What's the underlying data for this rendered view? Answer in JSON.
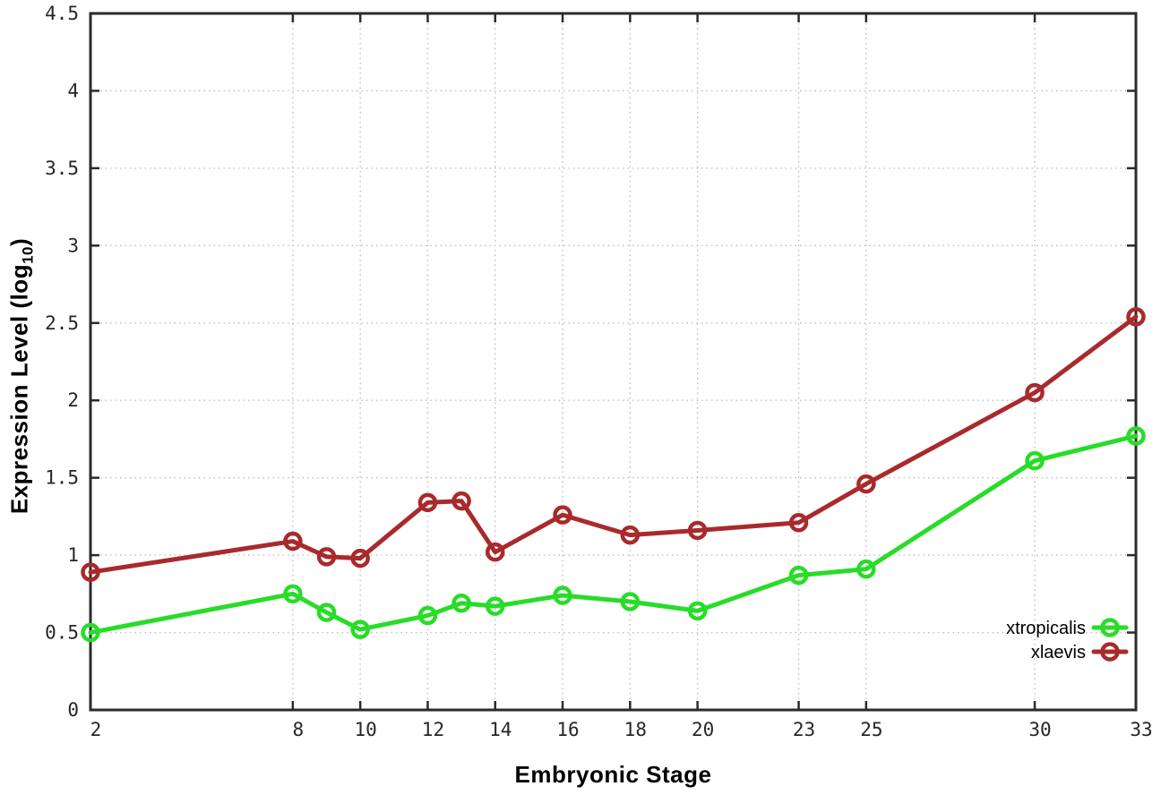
{
  "chart_data": {
    "type": "line",
    "x": [
      2,
      8,
      9,
      10,
      12,
      13,
      14,
      16,
      18,
      20,
      23,
      25,
      30,
      33
    ],
    "series": [
      {
        "name": "xtropicalis",
        "color": "#28dc28",
        "values": [
          0.5,
          0.75,
          0.63,
          0.52,
          0.61,
          0.69,
          0.67,
          0.74,
          0.7,
          0.64,
          0.87,
          0.91,
          1.61,
          1.77
        ]
      },
      {
        "name": "xlaevis",
        "color": "#a92a2c",
        "values": [
          0.89,
          1.09,
          0.99,
          0.98,
          1.34,
          1.35,
          1.02,
          1.26,
          1.13,
          1.16,
          1.21,
          1.46,
          2.05,
          2.54
        ]
      }
    ],
    "title": "",
    "xlabel": "Embryonic Stage",
    "ylabel": "Expression Level (log10)",
    "ylabel_parts": {
      "main": "Expression Level (log",
      "sub": "10",
      "end": ")"
    },
    "xlim": [
      2,
      33
    ],
    "ylim": [
      0,
      4.5
    ],
    "x_ticks": {
      "values": [
        2,
        8,
        10,
        12,
        14,
        16,
        18,
        20,
        23,
        25,
        30,
        33
      ],
      "labels": [
        "2",
        "8",
        "10",
        "12",
        "14",
        "16",
        "18",
        "20",
        "23",
        "25",
        "30",
        "33"
      ]
    },
    "y_ticks": {
      "values": [
        0,
        0.5,
        1,
        1.5,
        2,
        2.5,
        3,
        3.5,
        4,
        4.5
      ],
      "labels": [
        "0",
        "0.5",
        "1",
        "1.5",
        "2",
        "2.5",
        "3",
        "3.5",
        "4",
        "4.5"
      ]
    },
    "grid": true,
    "legend_position": "inside-bottom-right",
    "marker": "open-circle"
  },
  "colors": {
    "axis": "#2b2b2b",
    "grid": "#bdbdbd",
    "tick_label": "#262626"
  }
}
